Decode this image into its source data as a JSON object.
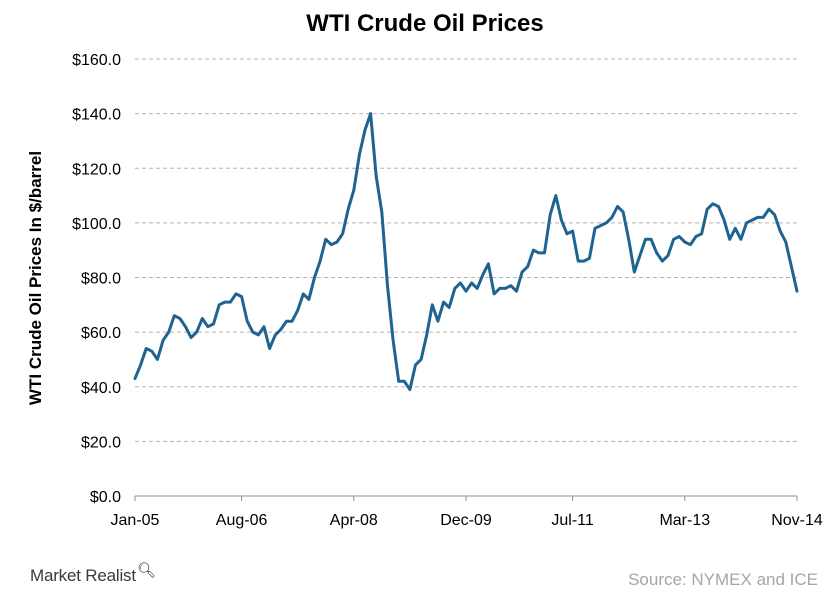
{
  "chart_data": {
    "type": "line",
    "title": "WTI Crude Oil Prices",
    "ylabel": "WTI Crude Oil Prices In $/barrel",
    "xlabel": "",
    "ylim": [
      0,
      160
    ],
    "yticks": [
      "$0.0",
      "$20.0",
      "$40.0",
      "$60.0",
      "$80.0",
      "$100.0",
      "$120.0",
      "$140.0",
      "$160.0"
    ],
    "ytick_values": [
      0,
      20,
      40,
      60,
      80,
      100,
      120,
      140,
      160
    ],
    "xlim": [
      "2005-01",
      "2014-11"
    ],
    "xticks": [
      "Jan-05",
      "Aug-06",
      "Apr-08",
      "Dec-09",
      "Jul-11",
      "Mar-13",
      "Nov-14"
    ],
    "xtick_values": [
      "2005-01",
      "2006-08",
      "2008-04",
      "2009-12",
      "2011-07",
      "2013-03",
      "2014-11"
    ],
    "grid": "horizontal dashed",
    "line_color": "#1f6391",
    "series": [
      {
        "x": [
          "2005-01",
          "2005-02",
          "2005-03",
          "2005-04",
          "2005-05",
          "2005-06",
          "2005-07",
          "2005-08",
          "2005-09",
          "2005-10",
          "2005-11",
          "2005-12",
          "2006-01",
          "2006-02",
          "2006-03",
          "2006-04",
          "2006-05",
          "2006-06",
          "2006-07",
          "2006-08",
          "2006-09",
          "2006-10",
          "2006-11",
          "2006-12",
          "2007-01",
          "2007-02",
          "2007-03",
          "2007-04",
          "2007-05",
          "2007-06",
          "2007-07",
          "2007-08",
          "2007-09",
          "2007-10",
          "2007-11",
          "2007-12",
          "2008-01",
          "2008-02",
          "2008-03",
          "2008-04",
          "2008-05",
          "2008-06",
          "2008-07",
          "2008-08",
          "2008-09",
          "2008-10",
          "2008-11",
          "2008-12",
          "2009-01",
          "2009-02",
          "2009-03",
          "2009-04",
          "2009-05",
          "2009-06",
          "2009-07",
          "2009-08",
          "2009-09",
          "2009-10",
          "2009-11",
          "2009-12",
          "2010-01",
          "2010-02",
          "2010-03",
          "2010-04",
          "2010-05",
          "2010-06",
          "2010-07",
          "2010-08",
          "2010-09",
          "2010-10",
          "2010-11",
          "2010-12",
          "2011-01",
          "2011-02",
          "2011-03",
          "2011-04",
          "2011-05",
          "2011-06",
          "2011-07",
          "2011-08",
          "2011-09",
          "2011-10",
          "2011-11",
          "2011-12",
          "2012-01",
          "2012-02",
          "2012-03",
          "2012-04",
          "2012-05",
          "2012-06",
          "2012-07",
          "2012-08",
          "2012-09",
          "2012-10",
          "2012-11",
          "2012-12",
          "2013-01",
          "2013-02",
          "2013-03",
          "2013-04",
          "2013-05",
          "2013-06",
          "2013-07",
          "2013-08",
          "2013-09",
          "2013-10",
          "2013-11",
          "2013-12",
          "2014-01",
          "2014-02",
          "2014-03",
          "2014-04",
          "2014-05",
          "2014-06",
          "2014-07",
          "2014-08",
          "2014-09",
          "2014-10",
          "2014-11"
        ],
        "y": [
          43,
          48,
          54,
          53,
          50,
          57,
          60,
          66,
          65,
          62,
          58,
          60,
          65,
          62,
          63,
          70,
          71,
          71,
          74,
          73,
          64,
          60,
          59,
          62,
          54,
          59,
          61,
          64,
          64,
          68,
          74,
          72,
          80,
          86,
          94,
          92,
          93,
          96,
          105,
          112,
          125,
          134,
          140,
          117,
          104,
          77,
          57,
          42,
          42,
          39,
          48,
          50,
          59,
          70,
          64,
          71,
          69,
          76,
          78,
          75,
          78,
          76,
          81,
          85,
          74,
          76,
          76,
          77,
          75,
          82,
          84,
          90,
          89,
          89,
          103,
          110,
          101,
          96,
          97,
          86,
          86,
          87,
          98,
          99,
          100,
          102,
          106,
          104,
          94,
          82,
          88,
          94,
          94,
          89,
          86,
          88,
          94,
          95,
          93,
          92,
          95,
          96,
          105,
          107,
          106,
          101,
          94,
          98,
          94,
          100,
          101,
          102,
          102,
          105,
          103,
          97,
          93,
          84,
          75
        ]
      }
    ]
  },
  "footer": {
    "brand": "Market Realist",
    "brand_icon": "magnifier-q-icon",
    "source": "Source: NYMEX and ICE"
  }
}
